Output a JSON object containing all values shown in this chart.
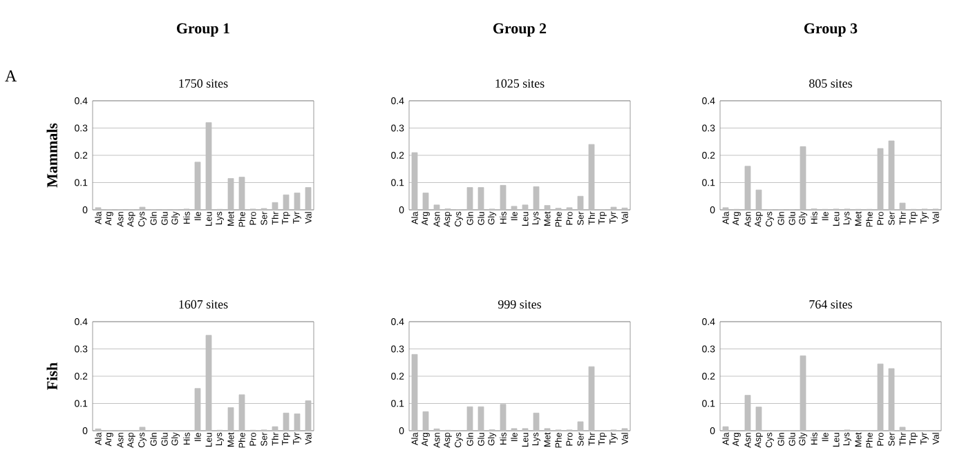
{
  "chart_data": [
    {
      "type": "bar",
      "title": "Group 1",
      "subtitle": "1750 sites",
      "ylabel": "Mammals",
      "annotations": [
        "A"
      ],
      "categories": [
        "Ala",
        "Arg",
        "Asn",
        "Asp",
        "Cys",
        "Gln",
        "Glu",
        "Gly",
        "His",
        "Ile",
        "Leu",
        "Lys",
        "Met",
        "Phe",
        "Pro",
        "Ser",
        "Thr",
        "Trp",
        "Tyr",
        "Val"
      ],
      "color": "#bfbfbf",
      "ylim": [
        0,
        0.4
      ],
      "yticks": [
        0,
        0.1,
        0.2,
        0.3,
        0.4
      ],
      "grid": "y",
      "values": [
        0.008,
        0,
        0,
        0,
        0.01,
        0,
        0,
        0,
        0.003,
        0.175,
        0.32,
        0.002,
        0.115,
        0.12,
        0.003,
        0.005,
        0.027,
        0.055,
        0.062,
        0.082
      ]
    },
    {
      "type": "bar",
      "title": "Group 2",
      "subtitle": "1025 sites",
      "categories": [
        "Ala",
        "Arg",
        "Asn",
        "Asp",
        "Cys",
        "Gln",
        "Glu",
        "Gly",
        "His",
        "Ile",
        "Leu",
        "Lys",
        "Met",
        "Phe",
        "Pro",
        "Ser",
        "Thr",
        "Trp",
        "Tyr",
        "Val"
      ],
      "color": "#bfbfbf",
      "ylim": [
        0,
        0.4
      ],
      "yticks": [
        0,
        0.1,
        0.2,
        0.3,
        0.4
      ],
      "grid": "y",
      "values": [
        0.21,
        0.062,
        0.018,
        0.004,
        0,
        0.082,
        0.082,
        0.003,
        0.09,
        0.013,
        0.018,
        0.085,
        0.016,
        0.006,
        0.008,
        0.05,
        0.24,
        0,
        0.01,
        0.007
      ]
    },
    {
      "type": "bar",
      "title": "Group 3",
      "subtitle": "805 sites",
      "categories": [
        "Ala",
        "Arg",
        "Asn",
        "Asp",
        "Cys",
        "Gln",
        "Glu",
        "Gly",
        "His",
        "Ile",
        "Leu",
        "Lys",
        "Met",
        "Phe",
        "Pro",
        "Ser",
        "Thr",
        "Trp",
        "Tyr",
        "Val"
      ],
      "color": "#bfbfbf",
      "ylim": [
        0,
        0.4
      ],
      "yticks": [
        0,
        0.1,
        0.2,
        0.3,
        0.4
      ],
      "grid": "y",
      "values": [
        0.008,
        0.002,
        0.16,
        0.073,
        0,
        0,
        0,
        0.232,
        0.004,
        0.002,
        0.003,
        0.003,
        0.002,
        0.002,
        0.225,
        0.253,
        0.025,
        0.002,
        0.003,
        0.003
      ]
    },
    {
      "type": "bar",
      "subtitle": "1607 sites",
      "ylabel": "Fish",
      "categories": [
        "Ala",
        "Arg",
        "Asn",
        "Asp",
        "Cys",
        "Gln",
        "Glu",
        "Gly",
        "His",
        "Ile",
        "Leu",
        "Lys",
        "Met",
        "Phe",
        "Pro",
        "Ser",
        "Thr",
        "Trp",
        "Tyr",
        "Val"
      ],
      "color": "#bfbfbf",
      "ylim": [
        0,
        0.4
      ],
      "yticks": [
        0,
        0.1,
        0.2,
        0.3,
        0.4
      ],
      "grid": "y",
      "values": [
        0.007,
        0,
        0,
        0,
        0.013,
        0,
        0,
        0,
        0,
        0.155,
        0.35,
        0.002,
        0.085,
        0.132,
        0.002,
        0.003,
        0.015,
        0.065,
        0.062,
        0.11
      ]
    },
    {
      "type": "bar",
      "subtitle": "999 sites",
      "categories": [
        "Ala",
        "Arg",
        "Asn",
        "Asp",
        "Cys",
        "Gln",
        "Glu",
        "Gly",
        "His",
        "Ile",
        "Leu",
        "Lys",
        "Met",
        "Phe",
        "Pro",
        "Ser",
        "Thr",
        "Trp",
        "Tyr",
        "Val"
      ],
      "color": "#bfbfbf",
      "ylim": [
        0,
        0.4
      ],
      "yticks": [
        0,
        0.1,
        0.2,
        0.3,
        0.4
      ],
      "grid": "y",
      "values": [
        0.28,
        0.07,
        0.007,
        0.002,
        0,
        0.088,
        0.088,
        0.004,
        0.097,
        0.008,
        0.008,
        0.065,
        0.008,
        0.003,
        0.003,
        0.033,
        0.235,
        0,
        0.003,
        0.008
      ]
    },
    {
      "type": "bar",
      "subtitle": "764 sites",
      "categories": [
        "Ala",
        "Arg",
        "Asn",
        "Asp",
        "Cys",
        "Gln",
        "Glu",
        "Gly",
        "His",
        "Ile",
        "Leu",
        "Lys",
        "Met",
        "Phe",
        "Pro",
        "Ser",
        "Thr",
        "Trp",
        "Tyr",
        "Val"
      ],
      "color": "#bfbfbf",
      "ylim": [
        0,
        0.4
      ],
      "yticks": [
        0,
        0.1,
        0.2,
        0.3,
        0.4
      ],
      "grid": "y",
      "values": [
        0.015,
        0,
        0.13,
        0.087,
        0,
        0,
        0,
        0.275,
        0,
        0,
        0,
        0.003,
        0,
        0,
        0.245,
        0.228,
        0.013,
        0,
        0,
        0
      ]
    }
  ]
}
